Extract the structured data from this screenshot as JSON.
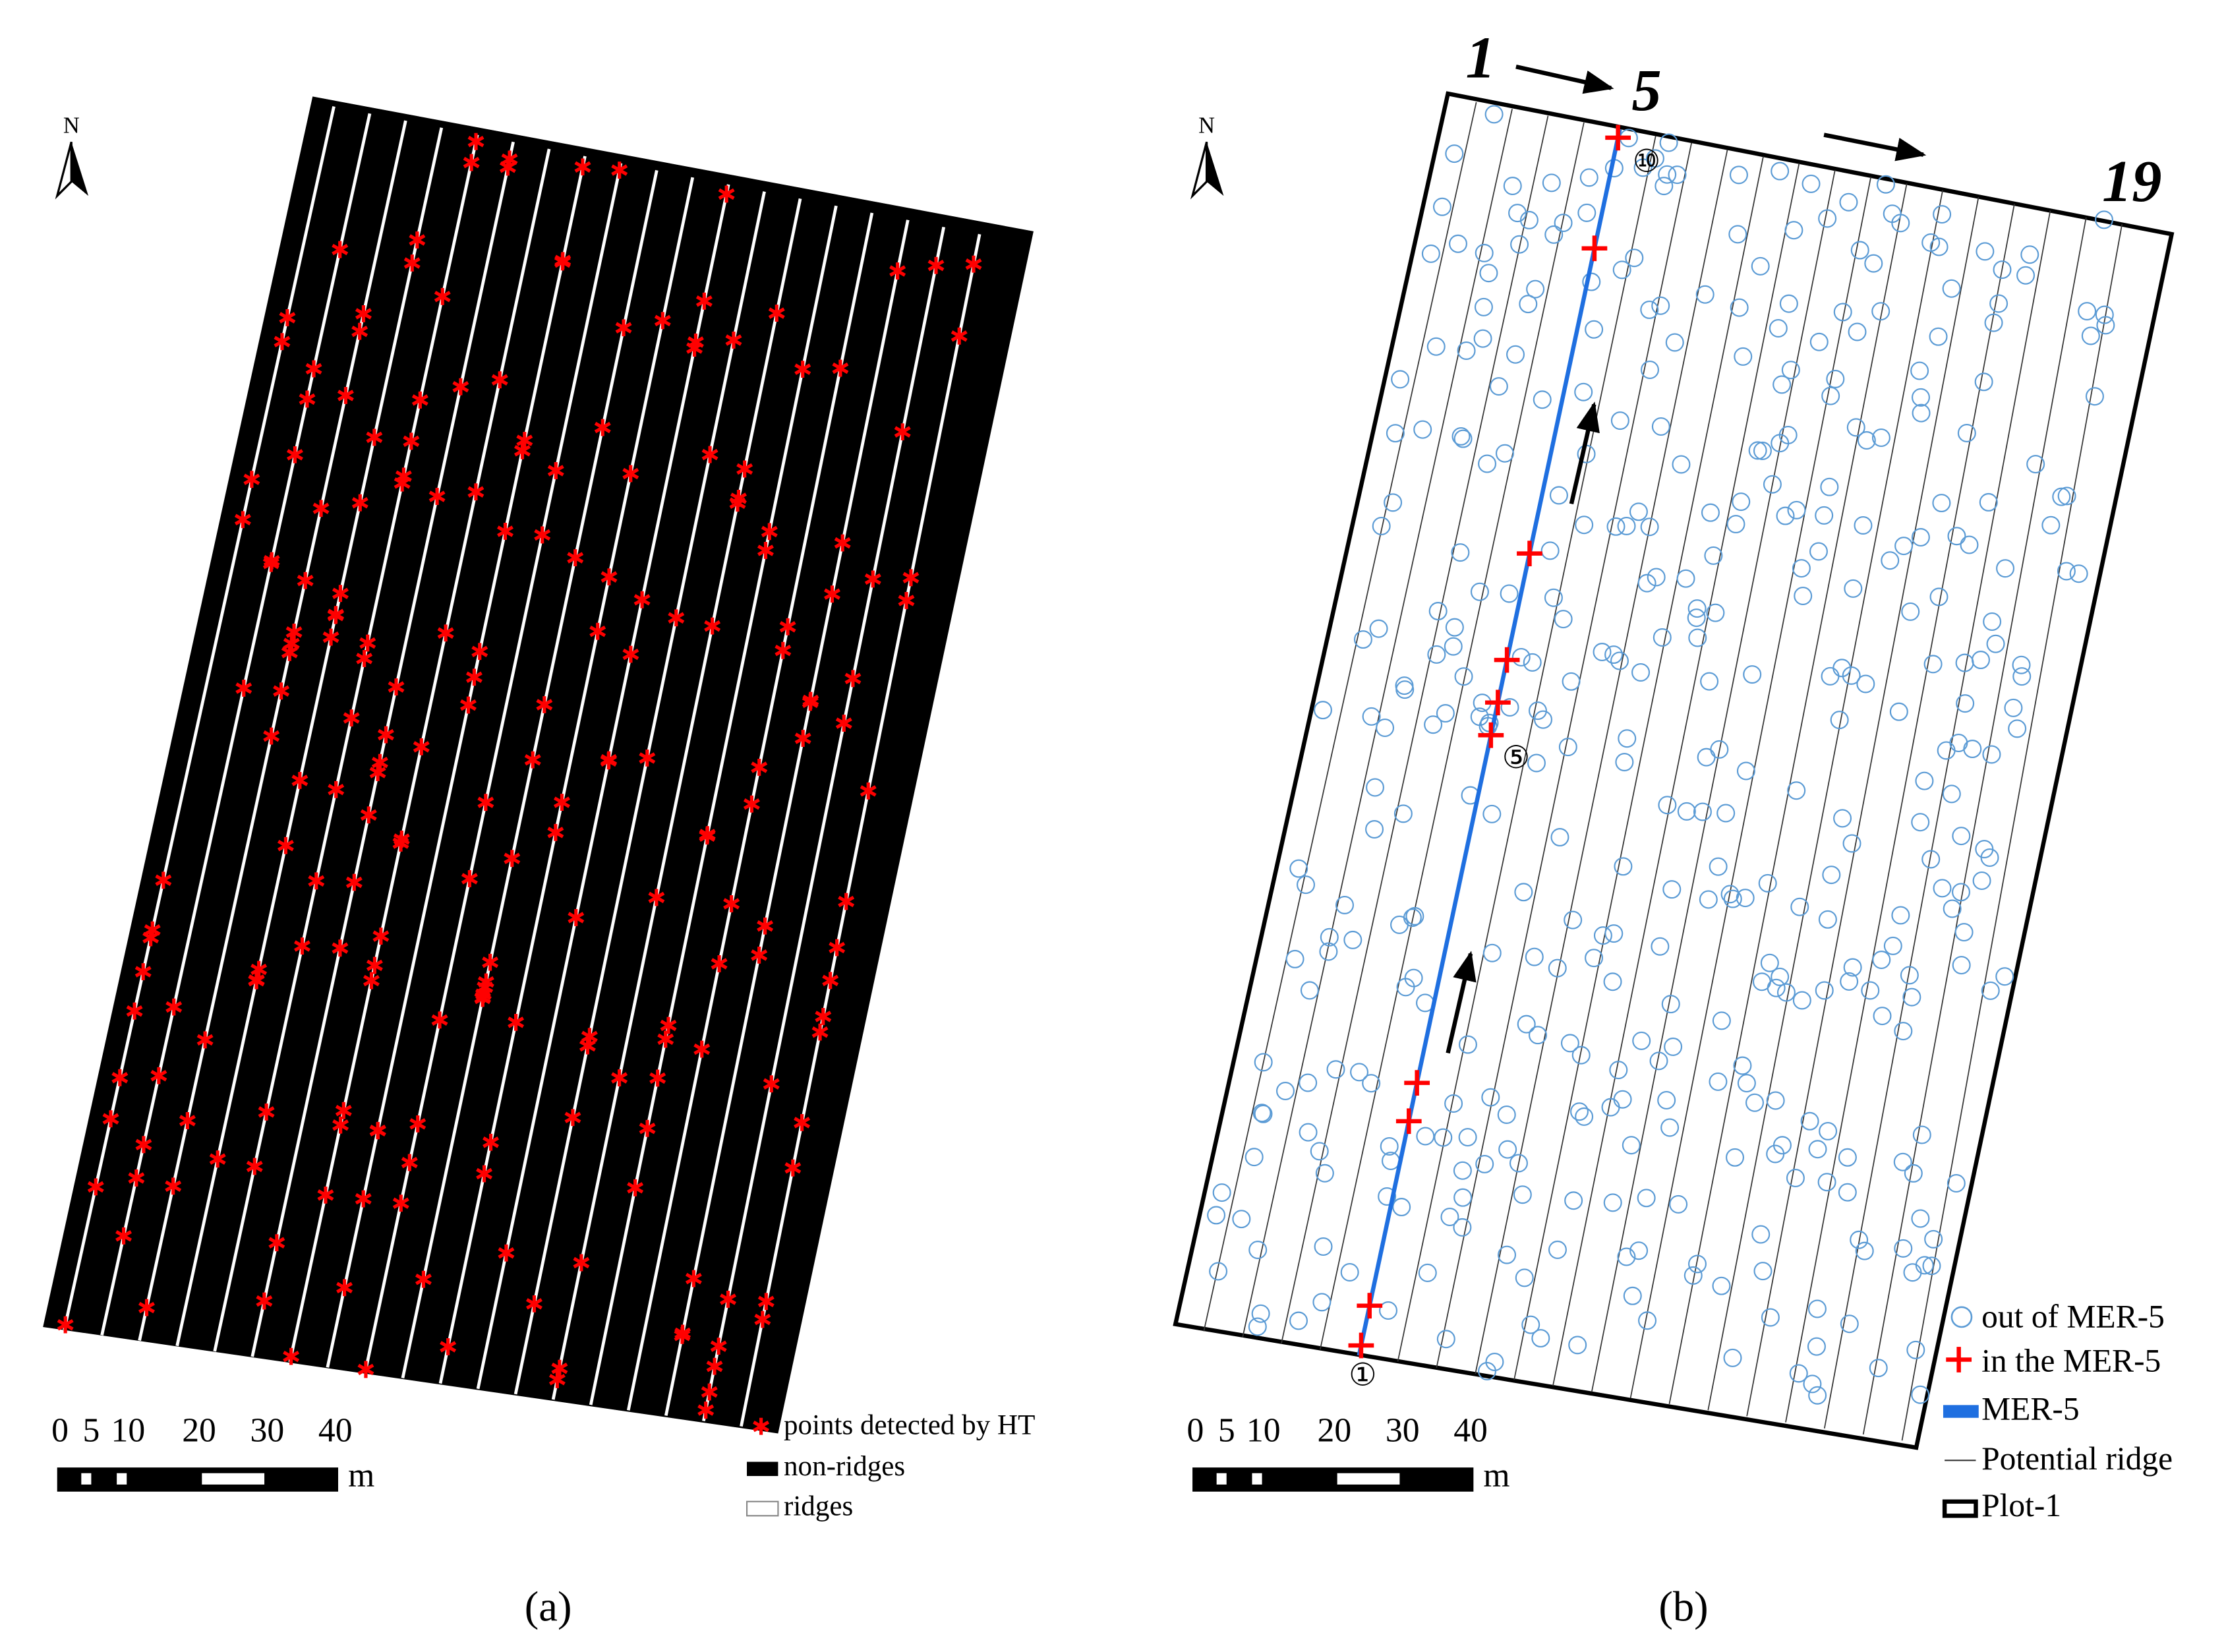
{
  "panels": [
    {
      "label": "(a)",
      "north": "N",
      "scale": {
        "ticks": [
          "0",
          "5",
          "10",
          "20",
          "30",
          "40"
        ],
        "unit": "m"
      },
      "legend": [
        "points detected by HT",
        "non-ridges",
        "ridges"
      ]
    },
    {
      "label": "(b)",
      "north": "N",
      "scale": {
        "ticks": [
          "0",
          "5",
          "10",
          "20",
          "30",
          "40"
        ],
        "unit": "m"
      },
      "legend": [
        "out of MER-5",
        "in the MER-5",
        "MER-5",
        "Potential ridge",
        "Plot-1"
      ],
      "ridge_labels": [
        "1",
        "5",
        "19"
      ],
      "point_labels": [
        "①",
        "⑤",
        "⑩"
      ]
    }
  ]
}
